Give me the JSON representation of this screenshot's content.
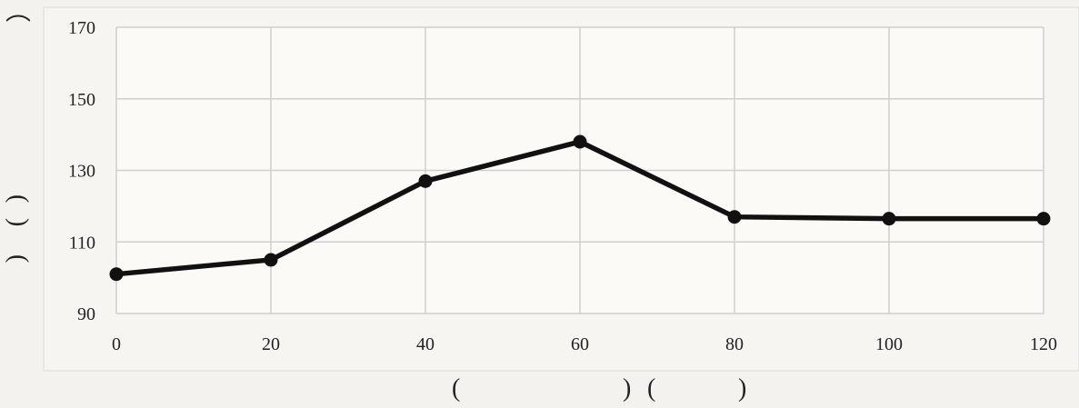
{
  "chart_data": {
    "type": "line",
    "title": "",
    "xlabel": "",
    "ylabel": "",
    "x": [
      0,
      20,
      40,
      60,
      80,
      100,
      120
    ],
    "series": [
      {
        "values": [
          101,
          105,
          127,
          138,
          117,
          116.5,
          116.5
        ]
      }
    ],
    "xlim": [
      0,
      120
    ],
    "ylim": [
      90,
      170
    ],
    "xticks": [
      "0",
      "20",
      "40",
      "60",
      "80",
      "100",
      "120"
    ],
    "yticks": [
      "90",
      "110",
      "130",
      "150",
      "170"
    ],
    "grid": true,
    "colors": {
      "line": "#111111",
      "grid": "#cfcfcf",
      "frame": "#e2e2e2",
      "plot_bg": "#fbfaf7"
    }
  },
  "axis_parens": {
    "x_open_1": "(",
    "x_close_1": ")",
    "x_open_2": "(",
    "x_close_2": ")",
    "y_top": "⌒",
    "y_mid_1": "(",
    "y_mid_2": ")",
    "y_low": "("
  }
}
